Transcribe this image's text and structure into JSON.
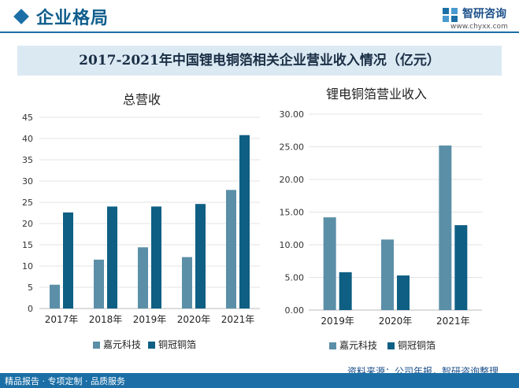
{
  "header": {
    "title": "企业格局"
  },
  "logo": {
    "name": "智研咨询",
    "url": "www.chyxx.com"
  },
  "main_title": "2017-2021年中国锂电铜箔相关企业营业收入情况（亿元）",
  "colors": {
    "jiayuan": "#5b8fa8",
    "tongguan": "#0e5f83",
    "accent": "#1b6fa6",
    "band": "#dbe9f3"
  },
  "legend": [
    "嘉元科技",
    "铜冠铜箔"
  ],
  "source": "资料来源：公司年报，智研咨询整理",
  "footer": "精品报告 · 专项定制 · 品质服务",
  "chart_data": [
    {
      "type": "bar",
      "title": "总营收",
      "categories": [
        "2017年",
        "2018年",
        "2019年",
        "2020年",
        "2021年"
      ],
      "series": [
        {
          "name": "嘉元科技",
          "values": [
            5.6,
            11.5,
            14.4,
            12.1,
            27.9
          ]
        },
        {
          "name": "铜冠铜箔",
          "values": [
            22.6,
            24.0,
            24.0,
            24.6,
            40.8
          ]
        }
      ],
      "ylim": [
        0,
        45
      ],
      "yticks": [
        "0",
        "5",
        "10",
        "15",
        "20",
        "25",
        "30",
        "35",
        "40",
        "45"
      ],
      "legend_position": "bottom"
    },
    {
      "type": "bar",
      "title": "锂电铜箔营业收入",
      "categories": [
        "2019年",
        "2020年",
        "2021年"
      ],
      "series": [
        {
          "name": "嘉元科技",
          "values": [
            14.2,
            10.8,
            25.2
          ]
        },
        {
          "name": "铜冠铜箔",
          "values": [
            5.8,
            5.3,
            13.0
          ]
        }
      ],
      "ylim": [
        0,
        30
      ],
      "yticks": [
        "0.00",
        "5.00",
        "10.00",
        "15.00",
        "20.00",
        "25.00",
        "30.00"
      ],
      "legend_position": "bottom"
    }
  ]
}
